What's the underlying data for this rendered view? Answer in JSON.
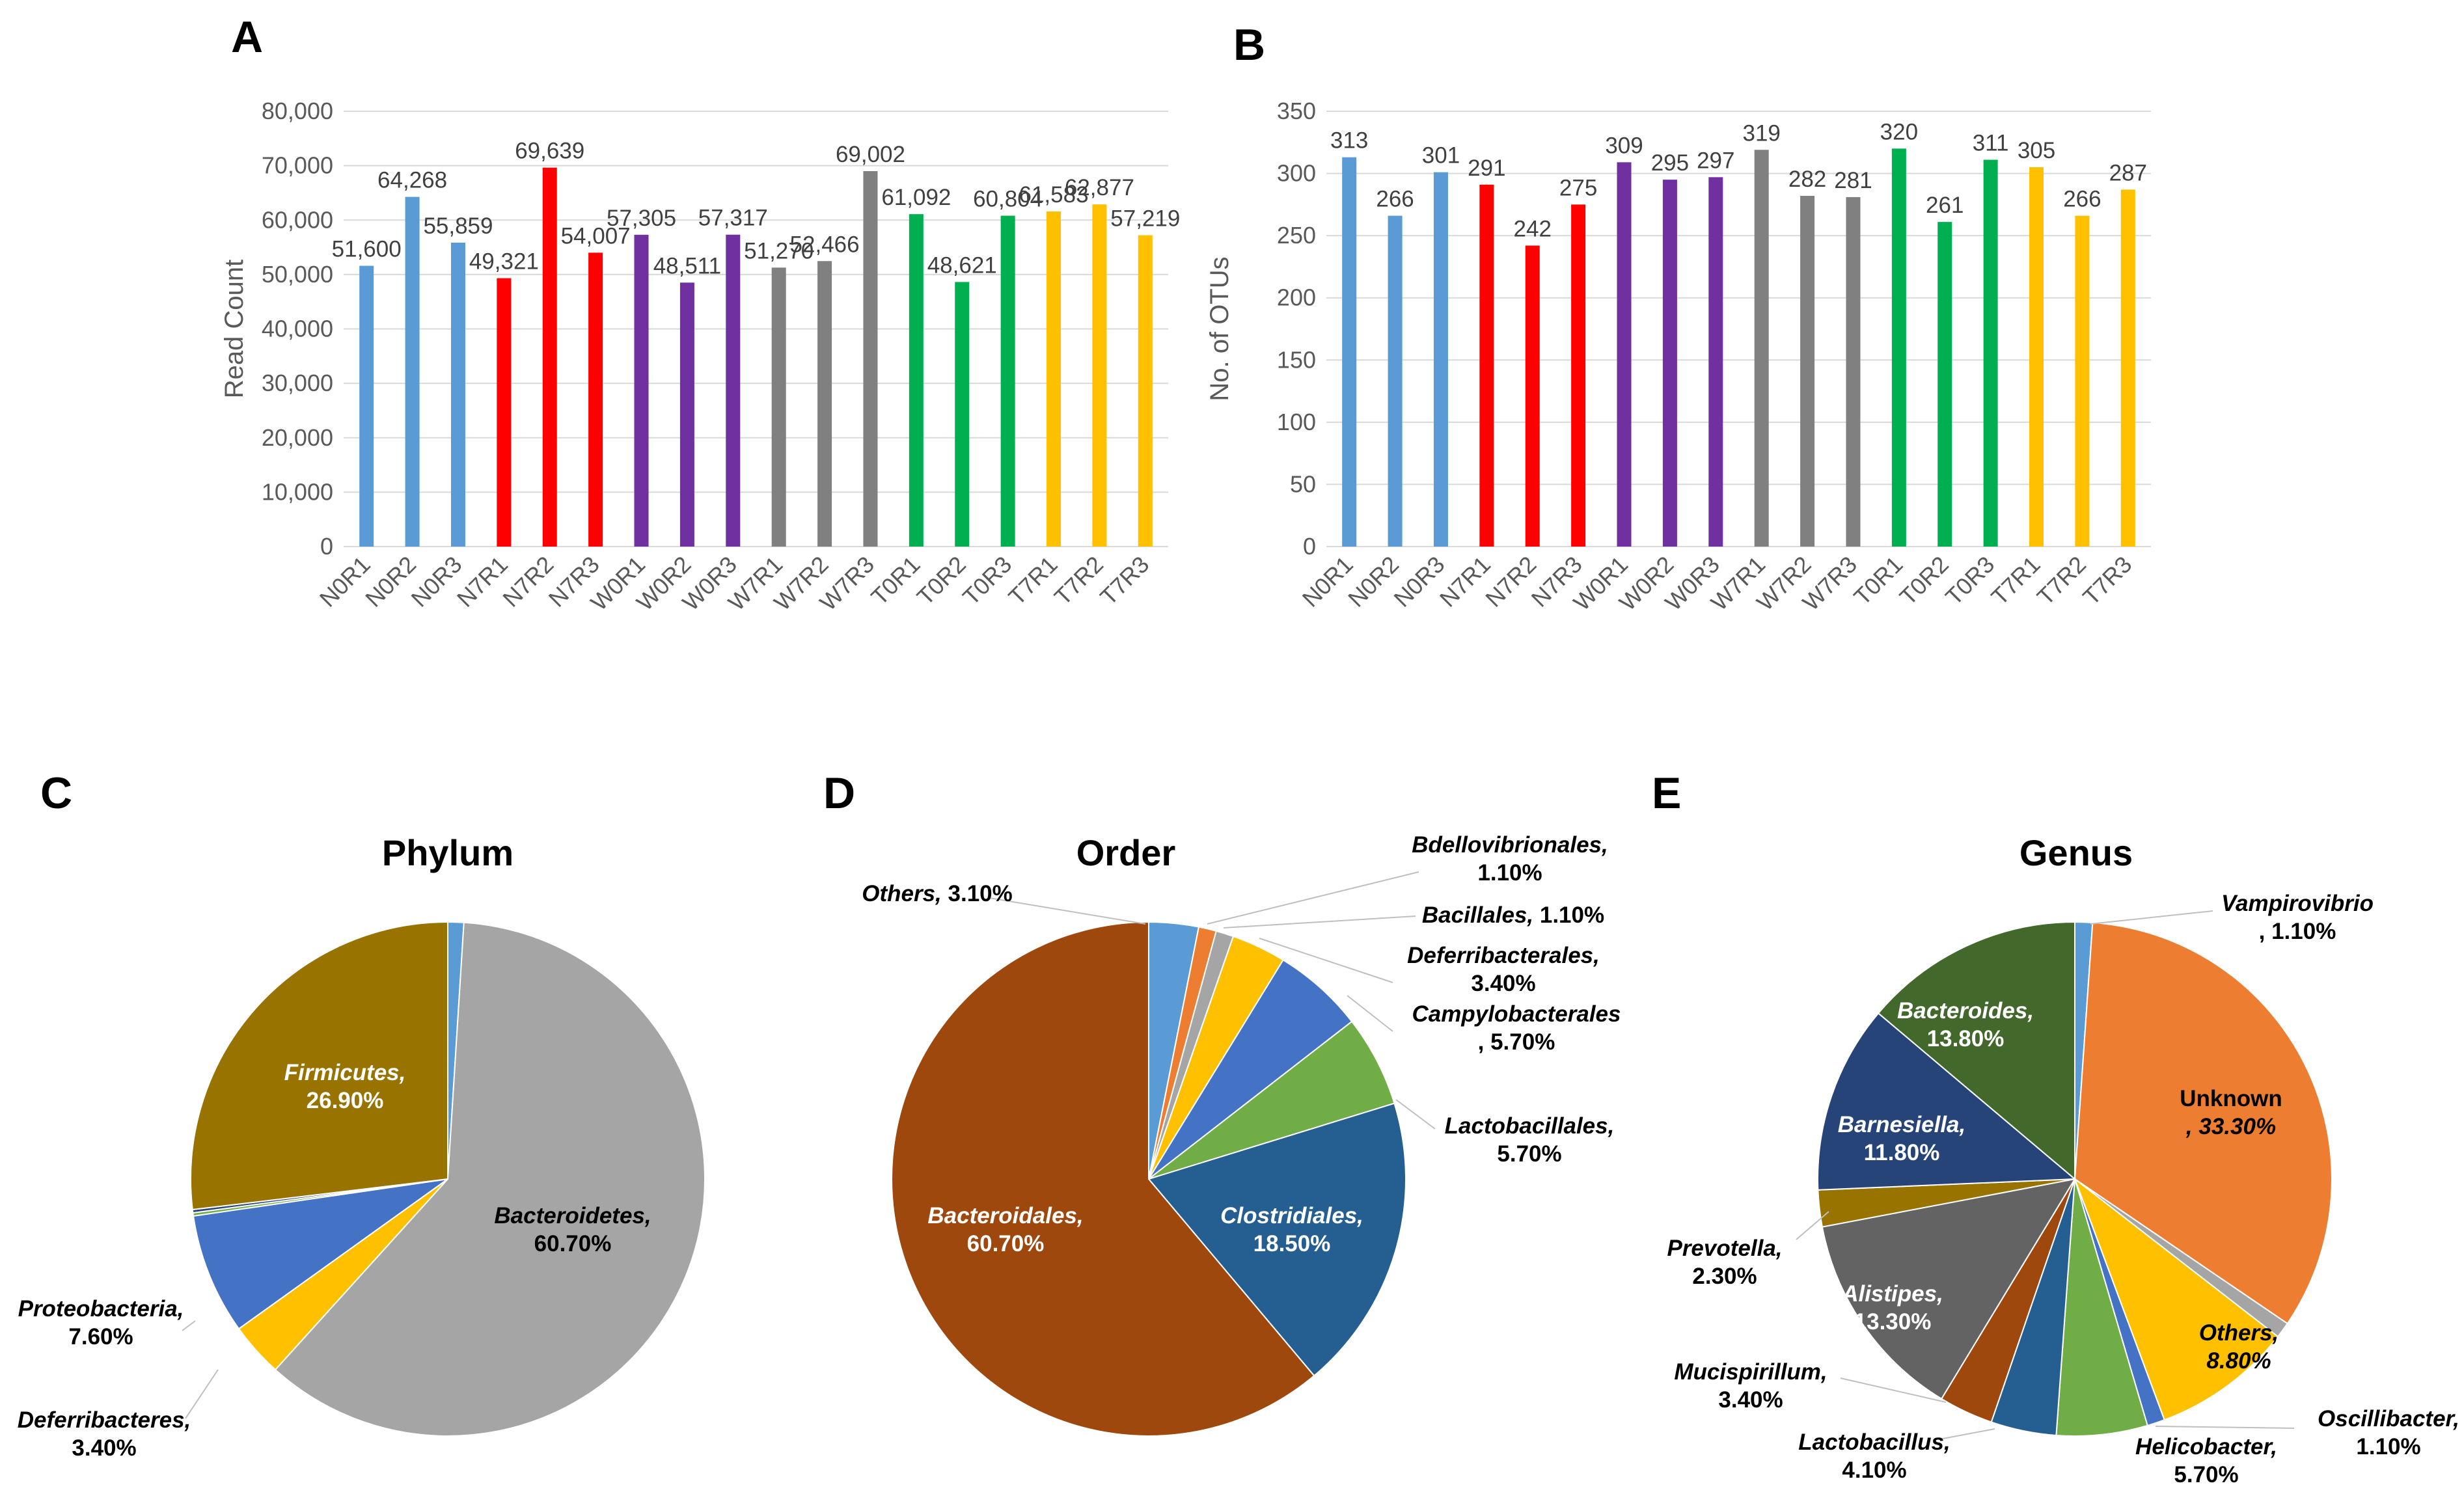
{
  "panels": {
    "a": "A",
    "b": "B",
    "c": "C",
    "d": "D",
    "e": "E"
  },
  "colors": {
    "N0": "#5b9bd5",
    "N7": "#ff0000",
    "W0": "#7030a0",
    "W7": "#808080",
    "T0": "#00b050",
    "T7": "#ffc000"
  },
  "chart_data": [
    {
      "id": "A",
      "type": "bar",
      "title": "",
      "xlabel": "",
      "ylabel": "Read Count",
      "ylim": [
        0,
        80000
      ],
      "yticks": [
        0,
        10000,
        20000,
        30000,
        40000,
        50000,
        60000,
        70000,
        80000
      ],
      "ytick_labels": [
        "0",
        "10,000",
        "20,000",
        "30,000",
        "40,000",
        "50,000",
        "60,000",
        "70,000",
        "80,000"
      ],
      "grid": true,
      "categories": [
        "N0R1",
        "N0R2",
        "N0R3",
        "N7R1",
        "N7R2",
        "N7R3",
        "W0R1",
        "W0R2",
        "W0R3",
        "W7R1",
        "W7R2",
        "W7R3",
        "T0R1",
        "T0R2",
        "T0R3",
        "T7R1",
        "T7R2",
        "T7R3"
      ],
      "values": [
        51600,
        64268,
        55859,
        49321,
        69639,
        54007,
        57305,
        48511,
        57317,
        51270,
        52466,
        69002,
        61092,
        48621,
        60804,
        61583,
        62877,
        57219
      ],
      "value_labels": [
        "51,600",
        "64,268",
        "55,859",
        "49,321",
        "69,639",
        "54,007",
        "57,305",
        "48,511",
        "57,317",
        "51,270",
        "52,466",
        "69,002",
        "61,092",
        "48,621",
        "60,804",
        "61,583",
        "62,877",
        "57,219"
      ],
      "groups": [
        "N0",
        "N0",
        "N0",
        "N7",
        "N7",
        "N7",
        "W0",
        "W0",
        "W0",
        "W7",
        "W7",
        "W7",
        "T0",
        "T0",
        "T0",
        "T7",
        "T7",
        "T7"
      ]
    },
    {
      "id": "B",
      "type": "bar",
      "title": "",
      "xlabel": "",
      "ylabel": "No. of OTUs",
      "ylim": [
        0,
        350
      ],
      "yticks": [
        0,
        50,
        100,
        150,
        200,
        250,
        300,
        350
      ],
      "ytick_labels": [
        "0",
        "50",
        "100",
        "150",
        "200",
        "250",
        "300",
        "350"
      ],
      "grid": true,
      "categories": [
        "N0R1",
        "N0R2",
        "N0R3",
        "N7R1",
        "N7R2",
        "N7R3",
        "W0R1",
        "W0R2",
        "W0R3",
        "W7R1",
        "W7R2",
        "W7R3",
        "T0R1",
        "T0R2",
        "T0R3",
        "T7R1",
        "T7R2",
        "T7R3"
      ],
      "values": [
        313,
        266,
        301,
        291,
        242,
        275,
        309,
        295,
        297,
        319,
        282,
        281,
        320,
        261,
        311,
        305,
        266,
        287
      ],
      "value_labels": [
        "313",
        "266",
        "301",
        "291",
        "242",
        "275",
        "309",
        "295",
        "297",
        "319",
        "282",
        "281",
        "320",
        "261",
        "311",
        "305",
        "266",
        "287"
      ],
      "groups": [
        "N0",
        "N0",
        "N0",
        "N7",
        "N7",
        "N7",
        "W0",
        "W0",
        "W0",
        "W7",
        "W7",
        "W7",
        "T0",
        "T0",
        "T0",
        "T7",
        "T7",
        "T7"
      ]
    },
    {
      "id": "C",
      "type": "pie",
      "title": "Phylum",
      "slices": [
        {
          "name": "unlabeled-1",
          "value": 1.0,
          "color": "#5b9bd5",
          "label_name": "",
          "label_value": ""
        },
        {
          "name": "Bacteroidetes",
          "value": 60.7,
          "color": "#a5a5a5",
          "label_name": "Bacteroidetes,",
          "label_value": "60.70%"
        },
        {
          "name": "Deferribacteres",
          "value": 3.4,
          "color": "#ffc000",
          "label_name": "Deferribacteres,",
          "label_value": "3.40%"
        },
        {
          "name": "Proteobacteria",
          "value": 7.6,
          "color": "#4472c4",
          "label_name": "Proteobacteria,",
          "label_value": "7.60%"
        },
        {
          "name": "unlabeled-2",
          "value": 0.2,
          "color": "#70ad47",
          "label_name": "",
          "label_value": ""
        },
        {
          "name": "unlabeled-3",
          "value": 0.2,
          "color": "#264478",
          "label_name": "",
          "label_value": ""
        },
        {
          "name": "Firmicutes",
          "value": 26.9,
          "color": "#997300",
          "label_name": "Firmicutes,",
          "label_value": "26.90%"
        }
      ]
    },
    {
      "id": "D",
      "type": "pie",
      "title": "Order",
      "slices": [
        {
          "name": "Others",
          "value": 3.1,
          "color": "#5b9bd5",
          "label_name": "Others,",
          "label_value": "3.10%"
        },
        {
          "name": "Bdellovibrionales",
          "value": 1.1,
          "color": "#ed7d31",
          "label_name": "Bdellovibrionales,",
          "label_value": "1.10%"
        },
        {
          "name": "Bacillales",
          "value": 1.1,
          "color": "#a5a5a5",
          "label_name": "Bacillales,",
          "label_value": "1.10%"
        },
        {
          "name": "Deferribacterales",
          "value": 3.4,
          "color": "#ffc000",
          "label_name": "Deferribacterales,",
          "label_value": "3.40%"
        },
        {
          "name": "Campylobacterales",
          "value": 5.7,
          "color": "#4472c4",
          "label_name": "Campylobacterales",
          "label_value": ", 5.70%"
        },
        {
          "name": "Lactobacillales",
          "value": 5.7,
          "color": "#70ad47",
          "label_name": "Lactobacillales,",
          "label_value": "5.70%"
        },
        {
          "name": "Clostridiales",
          "value": 18.5,
          "color": "#255e91",
          "label_name": "Clostridiales,",
          "label_value": "18.50%"
        },
        {
          "name": "Bacteroidales",
          "value": 60.7,
          "color": "#9e480e",
          "label_name": "Bacteroidales,",
          "label_value": "60.70%"
        }
      ]
    },
    {
      "id": "E",
      "type": "pie",
      "title": "Genus",
      "slices": [
        {
          "name": "Vampirovibrio",
          "value": 1.1,
          "color": "#5b9bd5",
          "label_name": "Vampirovibrio",
          "label_value": ", 1.10%"
        },
        {
          "name": "Unknown",
          "value": 33.3,
          "color": "#ed7d31",
          "label_name": "Unknown",
          "label_value": ", 33.30%"
        },
        {
          "name": "unlabeled-4",
          "value": 1.0,
          "color": "#a5a5a5",
          "label_name": "",
          "label_value": ""
        },
        {
          "name": "Others",
          "value": 8.8,
          "color": "#ffc000",
          "label_name": "Others,",
          "label_value": "8.80%"
        },
        {
          "name": "Oscillibacter",
          "value": 1.1,
          "color": "#4472c4",
          "label_name": "Oscillibacter,",
          "label_value": "1.10%"
        },
        {
          "name": "Helicobacter",
          "value": 5.7,
          "color": "#70ad47",
          "label_name": "Helicobacter,",
          "label_value": "5.70%"
        },
        {
          "name": "Lactobacillus",
          "value": 4.1,
          "color": "#255e91",
          "label_name": "Lactobacillus,",
          "label_value": "4.10%"
        },
        {
          "name": "Mucispirillum",
          "value": 3.4,
          "color": "#9e480e",
          "label_name": "Mucispirillum,",
          "label_value": "3.40%"
        },
        {
          "name": "Alistipes",
          "value": 13.3,
          "color": "#636363",
          "label_name": "Alistipes,",
          "label_value": "13.30%"
        },
        {
          "name": "Prevotella",
          "value": 2.3,
          "color": "#997300",
          "label_name": "Prevotella,",
          "label_value": "2.30%"
        },
        {
          "name": "Barnesiella",
          "value": 11.8,
          "color": "#264478",
          "label_name": "Barnesiella,",
          "label_value": "11.80%"
        },
        {
          "name": "Bacteroides",
          "value": 13.8,
          "color": "#43682b",
          "label_name": "Bacteroides,",
          "label_value": "13.80%"
        }
      ]
    }
  ]
}
